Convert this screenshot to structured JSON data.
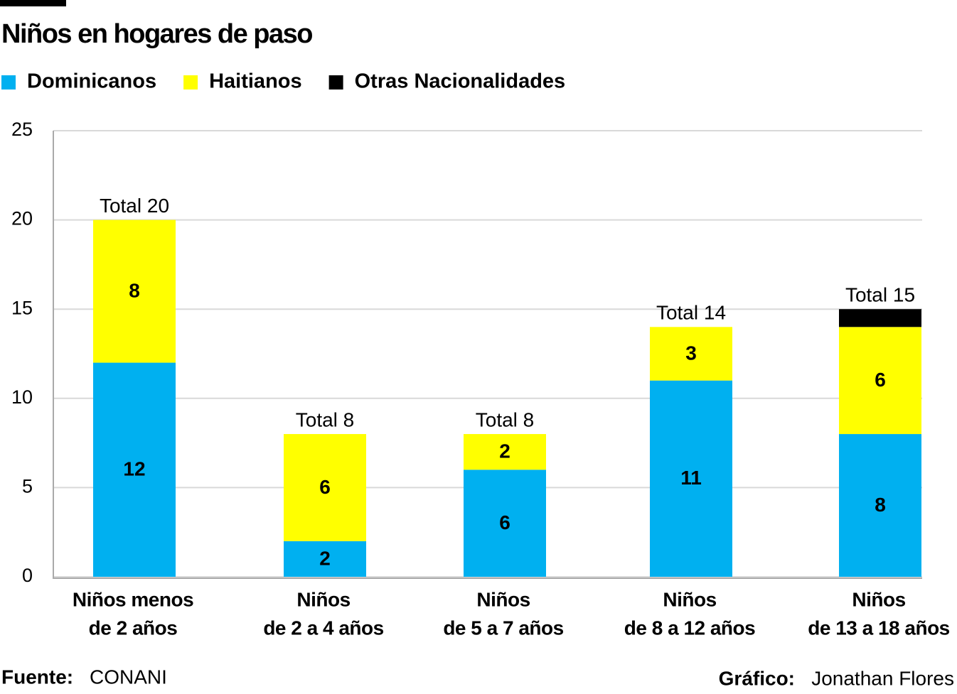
{
  "chart_data": {
    "type": "stacked-bar",
    "title": "Niños en hogares de paso",
    "categories": [
      [
        "Niños menos",
        "de 2 años"
      ],
      [
        "Niños",
        "de 2 a 4 años"
      ],
      [
        "Niños",
        "de 5 a 7 años"
      ],
      [
        "Niños",
        "de 8 a 12 años"
      ],
      [
        "Niños",
        "de 13 a 18 años"
      ]
    ],
    "series": [
      {
        "name": "Dominicanos",
        "color": "#00b0f0",
        "values": [
          12,
          2,
          6,
          11,
          8
        ]
      },
      {
        "name": "Haitianos",
        "color": "#ffff00",
        "values": [
          8,
          6,
          2,
          3,
          6
        ]
      },
      {
        "name": "Otras Nacionalidades",
        "color": "#000000",
        "values": [
          null,
          null,
          null,
          null,
          1
        ]
      }
    ],
    "totals": [
      20,
      8,
      8,
      14,
      15
    ],
    "total_labels": [
      "Total 20",
      "Total 8",
      "Total 8",
      "Total 14",
      "Total 15"
    ],
    "ylim": [
      0,
      25
    ],
    "yticks": [
      0,
      5,
      10,
      15,
      20,
      25
    ],
    "grid": true,
    "source_label": "Fuente:",
    "source": "CONANI",
    "credit_label": "Gráfico:",
    "credit": "Jonathan Flores"
  }
}
